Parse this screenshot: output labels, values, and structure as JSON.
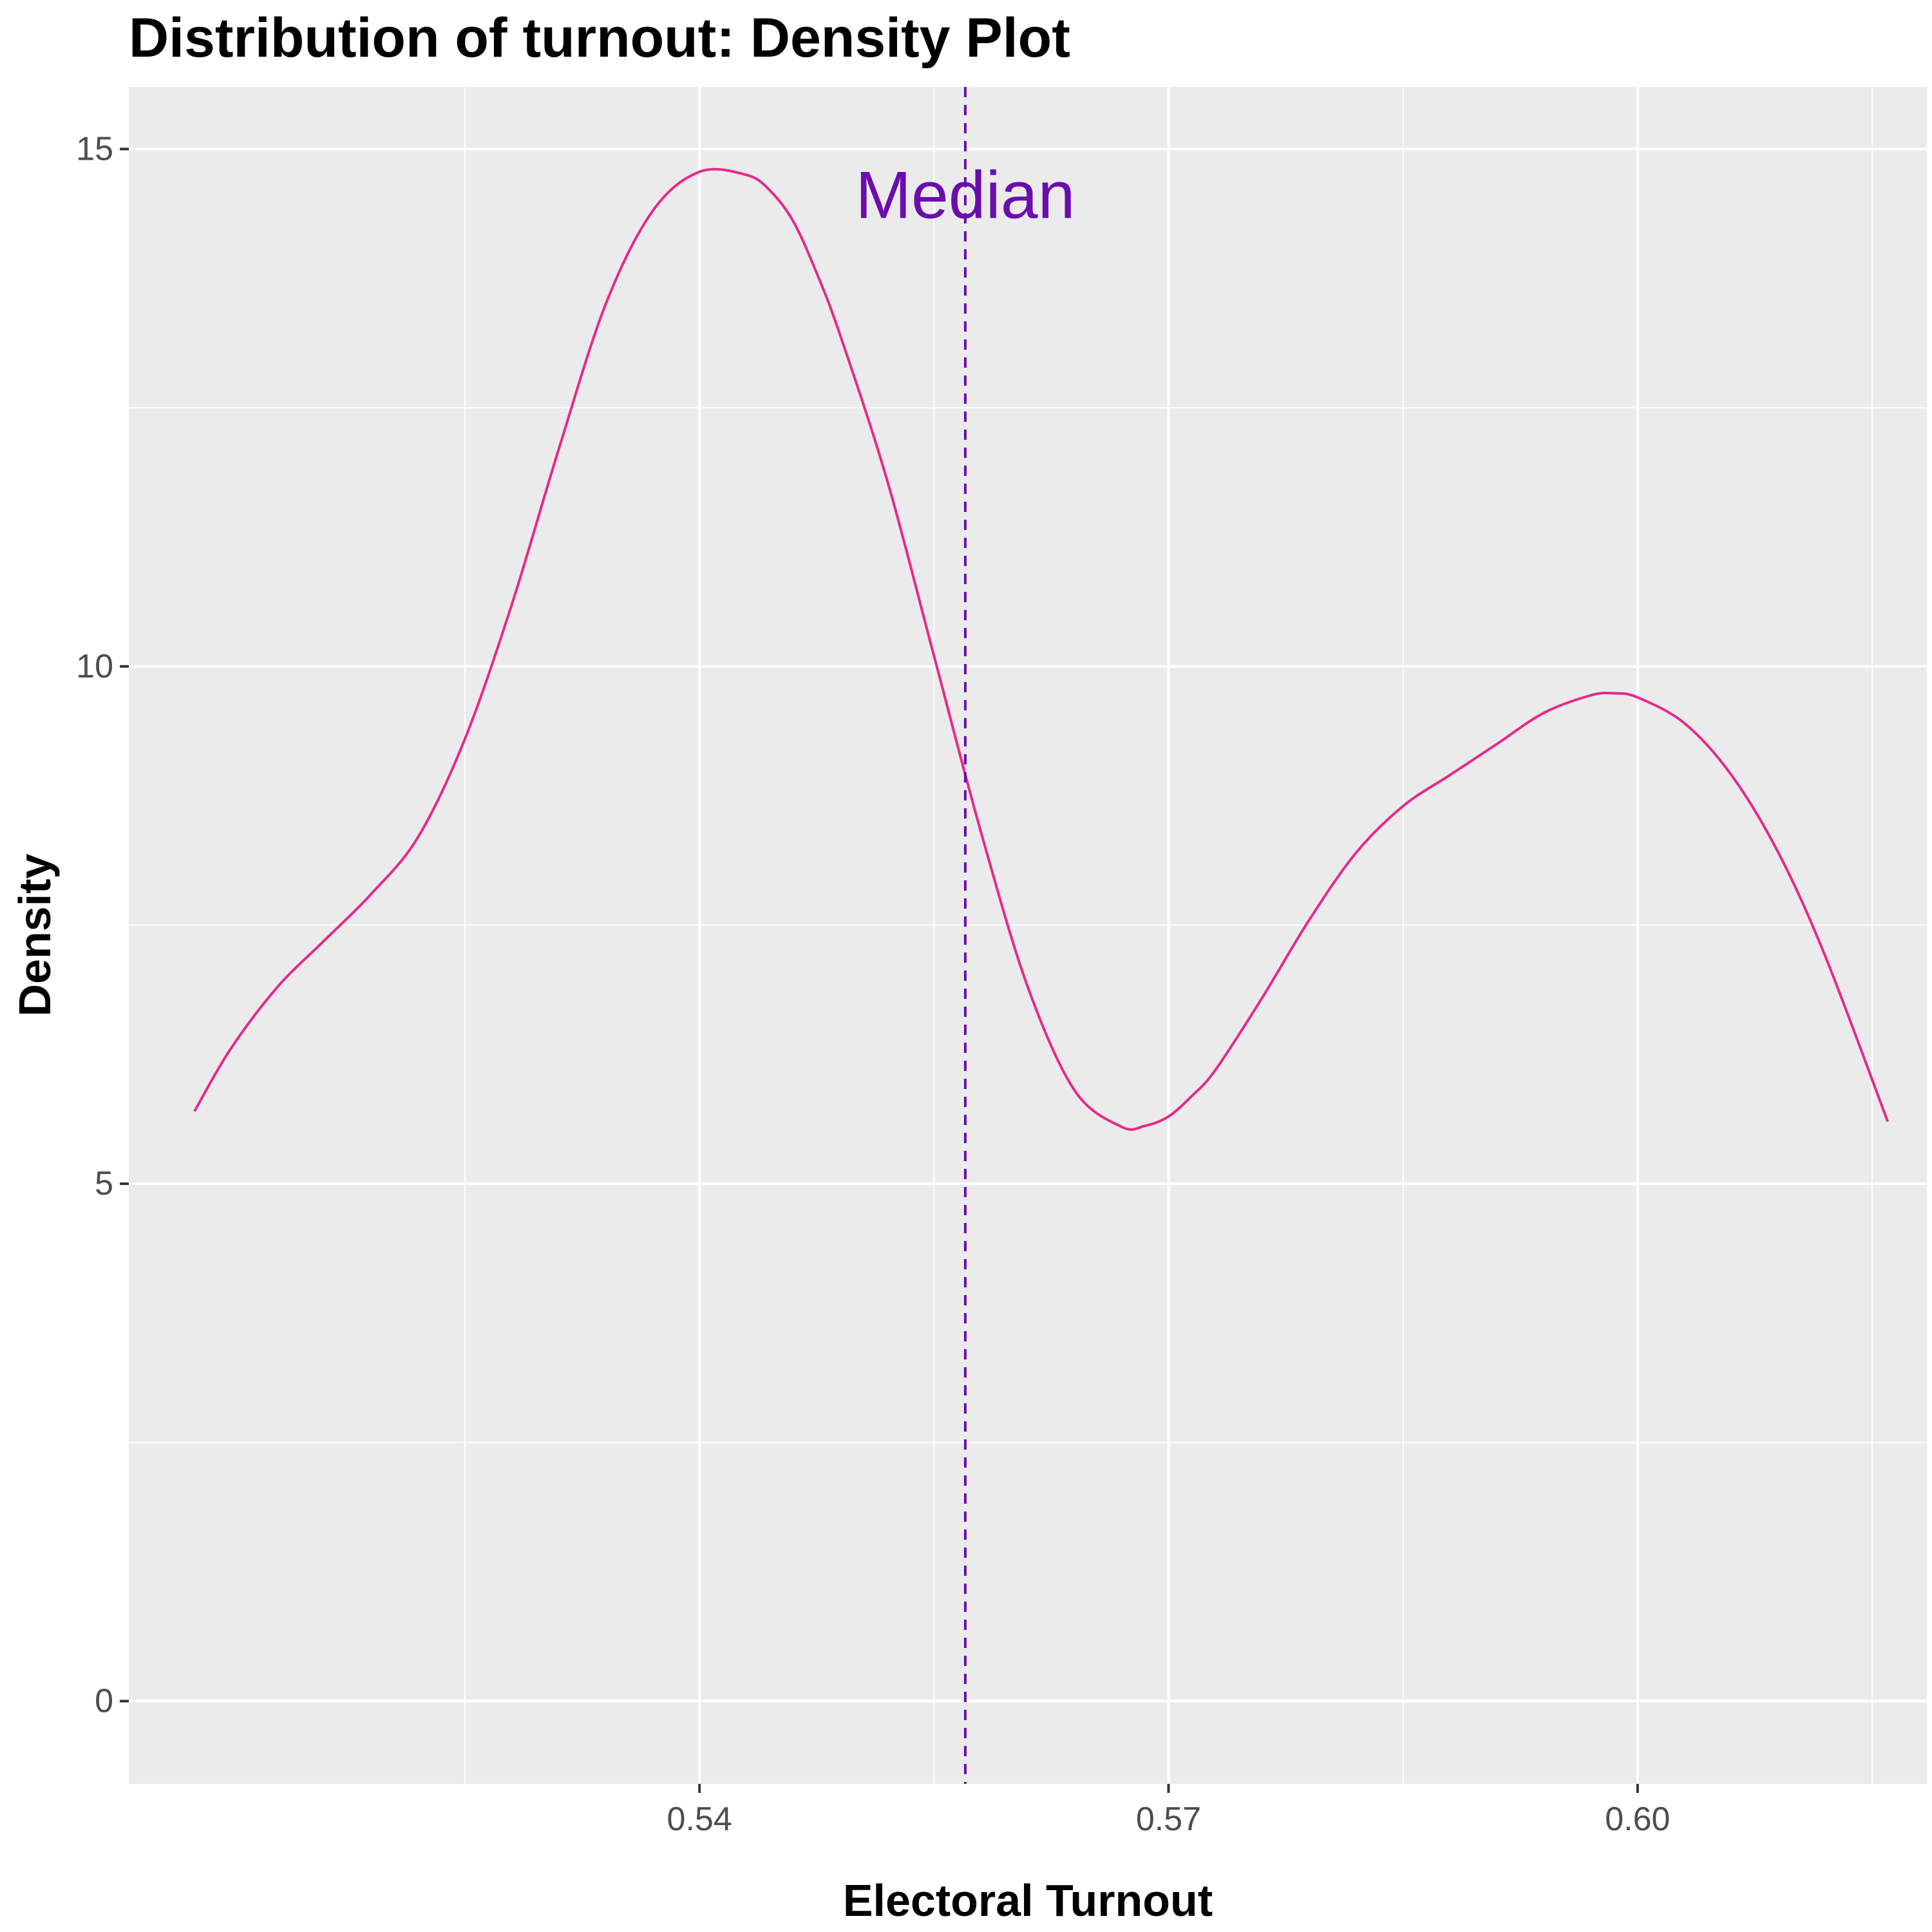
{
  "chart_data": {
    "type": "line",
    "title": "Distribution of turnout: Density Plot",
    "xlabel": "Electoral Turnout",
    "ylabel": "Density",
    "xlim": [
      0.5035,
      0.6185
    ],
    "ylim": [
      -0.8,
      15.6
    ],
    "x_ticks_major": [
      0.54,
      0.57,
      0.6
    ],
    "x_tick_labels": [
      "0.54",
      "0.57",
      "0.60"
    ],
    "x_ticks_minor": [
      0.525,
      0.555,
      0.585,
      0.615
    ],
    "y_ticks_major": [
      0,
      5,
      10,
      15
    ],
    "y_tick_labels": [
      "0",
      "5",
      "10",
      "15"
    ],
    "y_ticks_minor": [
      2.5,
      7.5,
      12.5
    ],
    "grid": true,
    "panel_background": "#ebebeb",
    "grid_color": "#ffffff",
    "series": [
      {
        "color": "#e7298a",
        "x": [
          0.5077,
          0.51,
          0.513,
          0.516,
          0.519,
          0.522,
          0.525,
          0.528,
          0.531,
          0.534,
          0.537,
          0.54,
          0.543,
          0.5445,
          0.546,
          0.5475,
          0.549,
          0.552,
          0.555,
          0.558,
          0.561,
          0.564,
          0.567,
          0.5685,
          0.57,
          0.5715,
          0.573,
          0.576,
          0.579,
          0.582,
          0.585,
          0.588,
          0.591,
          0.594,
          0.597,
          0.5985,
          0.6,
          0.603,
          0.606,
          0.609,
          0.612,
          0.616
        ],
        "y": [
          5.7,
          6.3,
          6.9,
          7.35,
          7.8,
          8.35,
          9.3,
          10.6,
          12.1,
          13.5,
          14.4,
          14.78,
          14.75,
          14.6,
          14.3,
          13.8,
          13.2,
          11.8,
          10.1,
          8.4,
          6.9,
          5.9,
          5.55,
          5.56,
          5.65,
          5.85,
          6.1,
          6.8,
          7.55,
          8.2,
          8.65,
          8.95,
          9.25,
          9.55,
          9.72,
          9.74,
          9.7,
          9.45,
          8.95,
          8.2,
          7.2,
          5.6
        ]
      }
    ],
    "median_line": {
      "x": 0.557,
      "color": "#6a0dad",
      "style": "dashed"
    },
    "annotations": [
      {
        "text": "Median",
        "x": 0.557,
        "y": 14.55,
        "color": "#6a0dad"
      }
    ]
  }
}
